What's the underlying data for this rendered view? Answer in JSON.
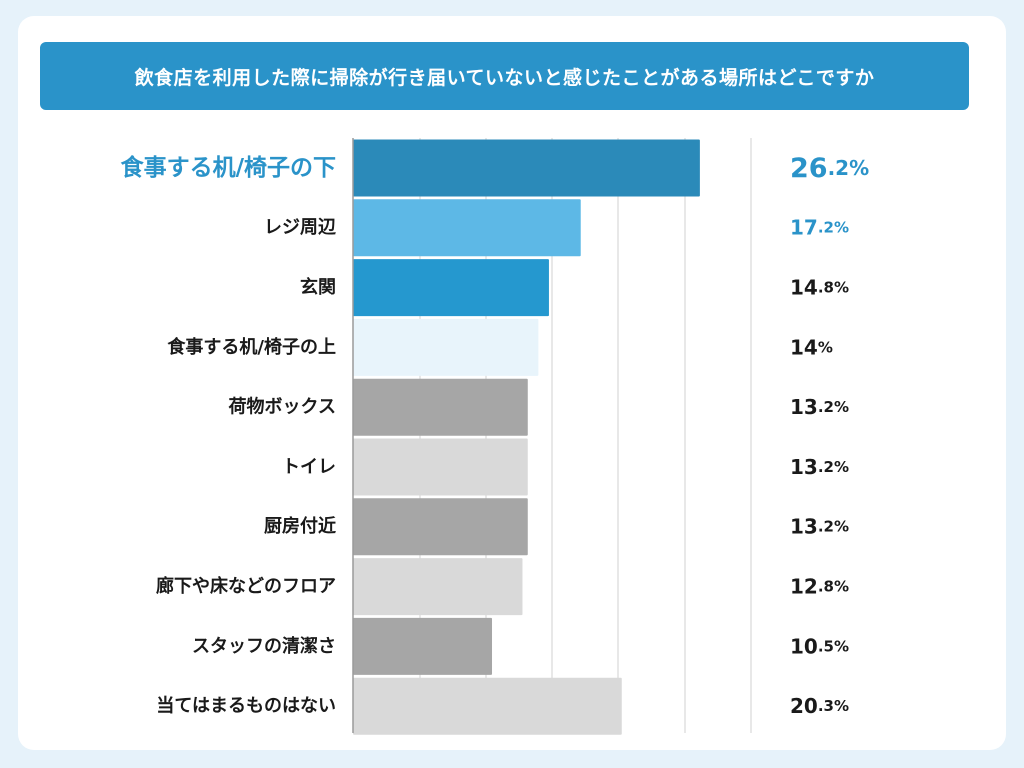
{
  "title": "飲食店を利用した際に掃除が行き届いていないと感じたことがある場所はどこですか",
  "colors": {
    "background": "#e6f2fa",
    "banner": "#2a93c9",
    "highlight_text": "#2a93c9",
    "label_text": "#1a1a1a",
    "grid": "#d0d0d0"
  },
  "chart_data": {
    "type": "bar",
    "orientation": "horizontal",
    "title": "飲食店を利用した際に掃除が行き届いていないと感じたことがある場所はどこですか",
    "unit": "%",
    "xlim": [
      0,
      30
    ],
    "grid": true,
    "categories": [
      {
        "label": "食事する机/椅子の下",
        "value": 26.2,
        "int": "26",
        "dec": ".2%",
        "bar_color": "#2b8ab9",
        "text_color": "#2a93c9",
        "highlight": true
      },
      {
        "label": "レジ周辺",
        "value": 17.2,
        "int": "17",
        "dec": ".2%",
        "bar_color": "#5db8e6",
        "text_color": "#2a93c9",
        "highlight": false
      },
      {
        "label": "玄関",
        "value": 14.8,
        "int": "14",
        "dec": ".8%",
        "bar_color": "#2598cf",
        "text_color": "#1a1a1a",
        "highlight": false
      },
      {
        "label": "食事する机/椅子の上",
        "value": 14,
        "int": "14",
        "dec": "%",
        "bar_color": "#e8f4fb",
        "text_color": "#1a1a1a",
        "highlight": false
      },
      {
        "label": "荷物ボックス",
        "value": 13.2,
        "int": "13",
        "dec": ".2%",
        "bar_color": "#a6a6a6",
        "text_color": "#1a1a1a",
        "highlight": false
      },
      {
        "label": "トイレ",
        "value": 13.2,
        "int": "13",
        "dec": ".2%",
        "bar_color": "#d9d9d9",
        "text_color": "#1a1a1a",
        "highlight": false
      },
      {
        "label": "厨房付近",
        "value": 13.2,
        "int": "13",
        "dec": ".2%",
        "bar_color": "#a6a6a6",
        "text_color": "#1a1a1a",
        "highlight": false
      },
      {
        "label": "廊下や床などのフロア",
        "value": 12.8,
        "int": "12",
        "dec": ".8%",
        "bar_color": "#d9d9d9",
        "text_color": "#1a1a1a",
        "highlight": false
      },
      {
        "label": "スタッフの清潔さ",
        "value": 10.5,
        "int": "10",
        "dec": ".5%",
        "bar_color": "#a6a6a6",
        "text_color": "#1a1a1a",
        "highlight": false
      },
      {
        "label": "当てはまるものはない",
        "value": 20.3,
        "int": "20",
        "dec": ".3%",
        "bar_color": "#d9d9d9",
        "text_color": "#1a1a1a",
        "highlight": false
      }
    ]
  }
}
